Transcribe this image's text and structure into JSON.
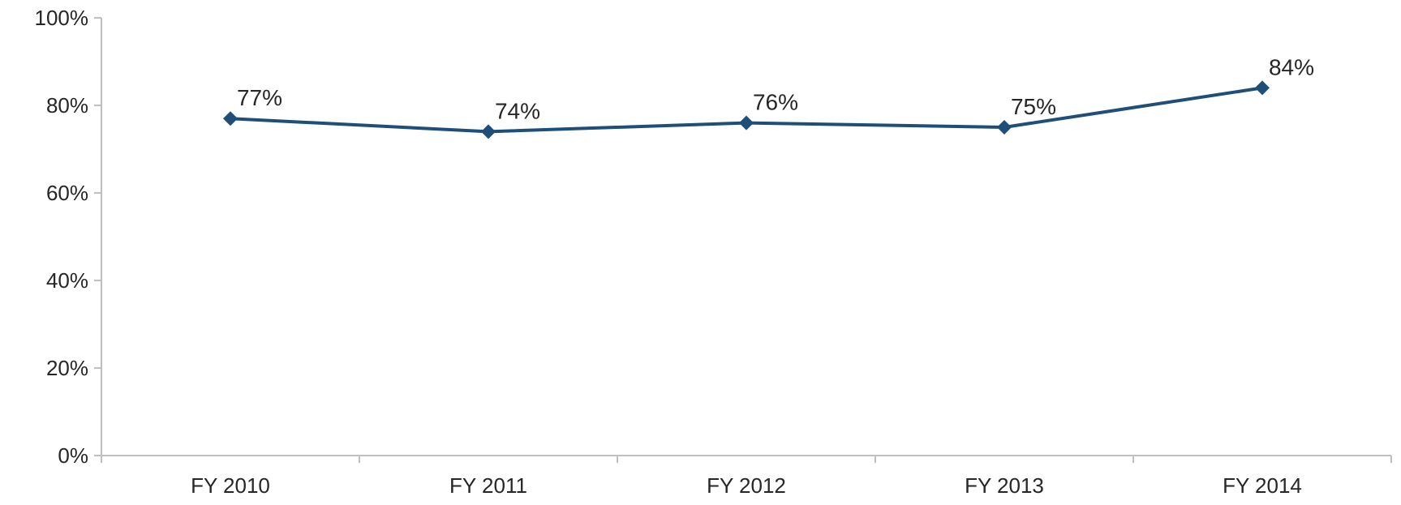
{
  "chart_data": {
    "type": "line",
    "title": "",
    "xlabel": "",
    "ylabel": "",
    "categories": [
      "FY 2010",
      "FY 2011",
      "FY 2012",
      "FY 2013",
      "FY 2014"
    ],
    "series": [
      {
        "values": [
          77,
          74,
          76,
          75,
          84
        ],
        "data_labels": [
          "77%",
          "74%",
          "76%",
          "75%",
          "84%"
        ],
        "color": "#1F4E79",
        "marker": "diamond"
      }
    ],
    "ylim": [
      0,
      100
    ],
    "y_ticks": [
      {
        "value": 0,
        "label": "0%"
      },
      {
        "value": 20,
        "label": "20%"
      },
      {
        "value": 40,
        "label": "40%"
      },
      {
        "value": 60,
        "label": "60%"
      },
      {
        "value": 80,
        "label": "80%"
      },
      {
        "value": 100,
        "label": "100%"
      }
    ],
    "grid": false,
    "legend": "none",
    "axis_color": "#BFBFBF",
    "text_color": "#262626"
  }
}
